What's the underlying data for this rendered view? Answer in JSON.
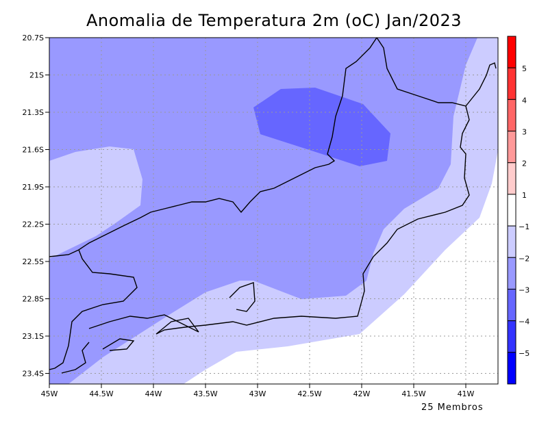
{
  "title": "Anomalia de Temperatura 2m (oC) Jan/2023",
  "footer": "25 Membros",
  "lat_labels": [
    "20.7S",
    "21S",
    "21.3S",
    "21.6S",
    "21.9S",
    "22.2S",
    "22.5S",
    "22.8S",
    "23.1S",
    "23.4S"
  ],
  "lon_labels": [
    "45W",
    "44.5W",
    "44W",
    "43.5W",
    "43W",
    "42.5W",
    "42W",
    "41.5W",
    "41W"
  ],
  "colorbar": {
    "colors": [
      "#ff0000",
      "#ff3333",
      "#ff6666",
      "#ff9999",
      "#ffcccc",
      "#ffffff",
      "#ccccff",
      "#9999ff",
      "#6666ff",
      "#3333ff",
      "#0000ff"
    ],
    "labels": [
      "5",
      "4",
      "3",
      "2",
      "1",
      "−1",
      "−2",
      "−3",
      "−4",
      "−5"
    ]
  },
  "fill_colors": {
    "light": "#ccccff",
    "mid": "#9999ff",
    "dark": "#6666ff",
    "white": "#ffffff"
  }
}
